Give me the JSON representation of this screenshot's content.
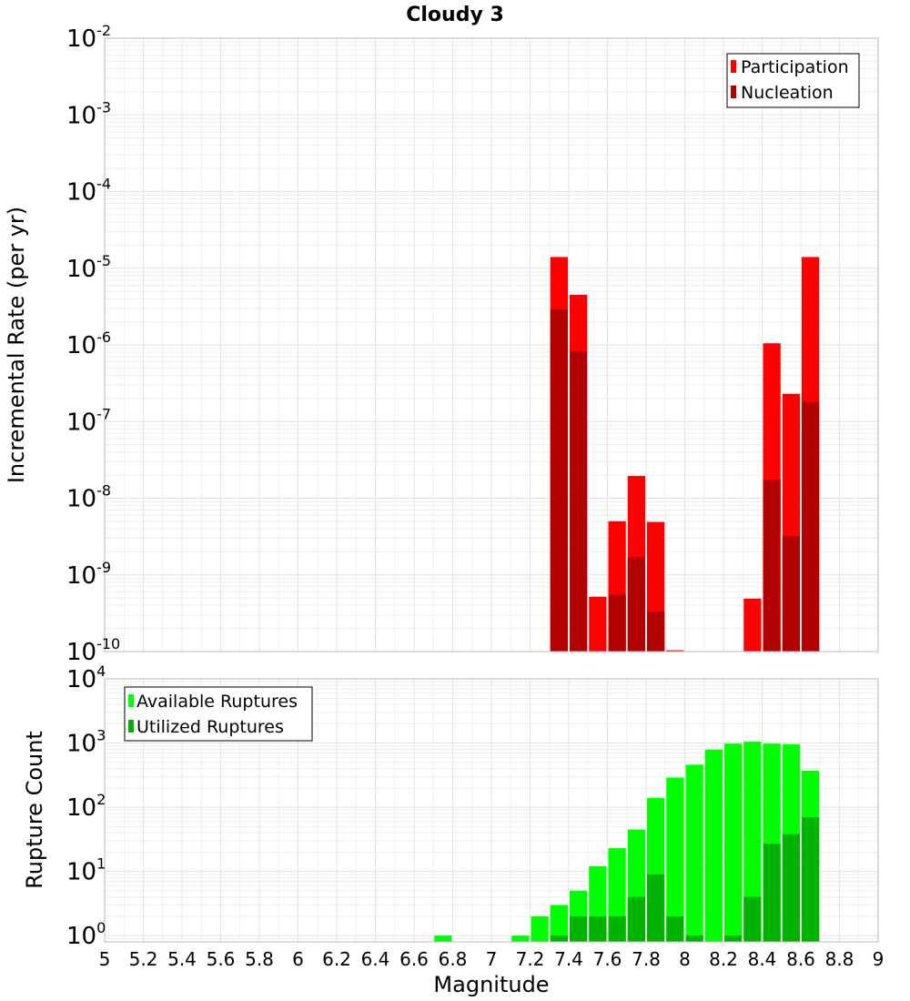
{
  "chart_data": [
    {
      "type": "bar",
      "title": "Cloudy 3",
      "xlabel": "",
      "ylabel": "Incremental Rate (per yr)",
      "yscale": "log",
      "ylim": [
        1e-10,
        0.01
      ],
      "xlim": [
        5,
        9
      ],
      "y_tick_labels": [
        {
          "base": "10",
          "exp": "-10"
        },
        {
          "base": "10",
          "exp": "-9"
        },
        {
          "base": "10",
          "exp": "-8"
        },
        {
          "base": "10",
          "exp": "-7"
        },
        {
          "base": "10",
          "exp": "-6"
        },
        {
          "base": "10",
          "exp": "-5"
        },
        {
          "base": "10",
          "exp": "-4"
        },
        {
          "base": "10",
          "exp": "-3"
        },
        {
          "base": "10",
          "exp": "-2"
        }
      ],
      "grid": true,
      "legend_position": "top-right",
      "x": [
        7.35,
        7.45,
        7.55,
        7.65,
        7.75,
        7.85,
        7.95,
        8.05,
        8.15,
        8.25,
        8.35,
        8.45,
        8.55,
        8.65
      ],
      "series": [
        {
          "name": "Participation",
          "color": "#ff0000",
          "values": [
            1.4e-05,
            4.5e-06,
            5.2e-10,
            5e-09,
            1.95e-08,
            4.9e-09,
            1.04e-10,
            null,
            null,
            null,
            4.9e-10,
            1.05e-06,
            2.3e-07,
            1.4e-05
          ]
        },
        {
          "name": "Nucleation",
          "color": "#b30000",
          "values": [
            2.9e-06,
            8.2e-07,
            null,
            5.5e-10,
            1.7e-09,
            3.3e-10,
            null,
            null,
            null,
            null,
            null,
            1.75e-08,
            3.2e-09,
            1.8e-07
          ]
        }
      ]
    },
    {
      "type": "bar",
      "title": "",
      "xlabel": "Magnitude",
      "ylabel": "Rupture Count",
      "yscale": "log",
      "ylim": [
        0.8,
        10000
      ],
      "xlim": [
        5,
        9
      ],
      "y_tick_labels": [
        {
          "base": "10",
          "exp": "0"
        },
        {
          "base": "10",
          "exp": "1"
        },
        {
          "base": "10",
          "exp": "2"
        },
        {
          "base": "10",
          "exp": "3"
        },
        {
          "base": "10",
          "exp": "4"
        }
      ],
      "x_tick_labels": [
        "5",
        "5.2",
        "5.4",
        "5.6",
        "5.8",
        "6",
        "6.2",
        "6.4",
        "6.6",
        "6.8",
        "7",
        "7.2",
        "7.4",
        "7.6",
        "7.8",
        "8",
        "8.2",
        "8.4",
        "8.6",
        "8.8",
        "9"
      ],
      "grid": true,
      "legend_position": "top-left",
      "x": [
        6.75,
        7.15,
        7.25,
        7.35,
        7.45,
        7.55,
        7.65,
        7.75,
        7.85,
        7.95,
        8.05,
        8.15,
        8.25,
        8.35,
        8.45,
        8.55,
        8.65
      ],
      "series": [
        {
          "name": "Available Ruptures",
          "color": "#00ff00",
          "values": [
            1,
            1,
            2,
            3,
            5,
            12,
            23,
            45,
            140,
            290,
            460,
            790,
            980,
            1050,
            980,
            960,
            370
          ]
        },
        {
          "name": "Utilized Ruptures",
          "color": "#00b300",
          "values": [
            null,
            null,
            null,
            1,
            2,
            2,
            2,
            4,
            9,
            2,
            1,
            null,
            1,
            4,
            27,
            38,
            70
          ]
        }
      ]
    }
  ]
}
